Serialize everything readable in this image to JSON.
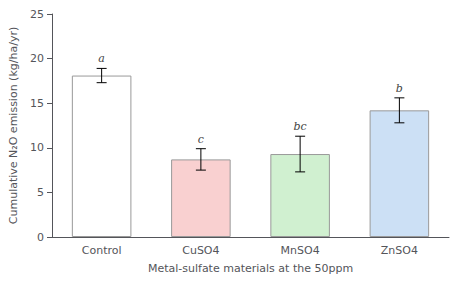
{
  "chart_data": {
    "type": "bar",
    "categories": [
      "Control",
      "CuSO4",
      "MnSO4",
      "ZnSO4"
    ],
    "values": [
      18.1,
      8.7,
      9.3,
      14.2
    ],
    "errors": [
      0.8,
      1.2,
      2.0,
      1.4
    ],
    "colors": [
      "#ffffff",
      "#f9d0d0",
      "#d0f0d0",
      "#cce0f5"
    ],
    "annotations": [
      "a",
      "c",
      "bc",
      "b"
    ],
    "xlabel": "Metal-sulfate materials at the 50ppm",
    "ylabel": "Cumulative N₂O emission (kg/ha/yr)",
    "ylim": [
      0,
      25
    ],
    "yticks": [
      0,
      5,
      10,
      15,
      20,
      25
    ],
    "grid": false
  }
}
